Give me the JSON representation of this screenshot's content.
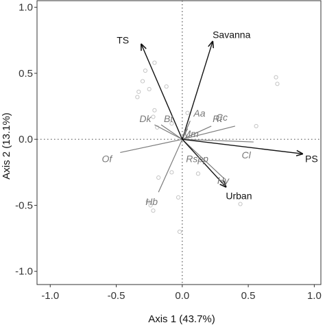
{
  "chart_data": {
    "type": "scatter",
    "subtype": "pca-biplot",
    "xlabel": "Axis 1 (43.7%)",
    "ylabel": "Axis 2 (13.1%)",
    "xlim": [
      -1.1,
      1.05
    ],
    "ylim": [
      -1.1,
      1.05
    ],
    "x_ticks": [
      -1.0,
      -0.5,
      0.0,
      0.5,
      1.0
    ],
    "y_ticks": [
      -1.0,
      -0.5,
      0.0,
      0.5,
      1.0
    ],
    "x_tick_labels": [
      "-1.0",
      "-0.5",
      "0.0",
      "0.5",
      "1.0"
    ],
    "y_tick_labels": [
      "-1.0",
      "-0.5",
      "0.0",
      "0.5",
      "1.0"
    ],
    "reference_lines": {
      "x": 0,
      "y": 0,
      "style": "dotted"
    },
    "grid": false,
    "environment_vectors": [
      {
        "label": "TS",
        "x": -0.31,
        "y": 0.72
      },
      {
        "label": "Savanna",
        "x": 0.23,
        "y": 0.74
      },
      {
        "label": "PS",
        "x": 0.91,
        "y": -0.11
      },
      {
        "label": "Urban",
        "x": 0.33,
        "y": -0.36
      }
    ],
    "species_vectors": [
      {
        "label": "Aa",
        "x": 0.06,
        "y": 0.14
      },
      {
        "label": "Dk",
        "x": -0.21,
        "y": 0.11
      },
      {
        "label": "Bt",
        "x": -0.16,
        "y": 0.11
      },
      {
        "label": "Mm",
        "x": 0.04,
        "y": 0.08
      },
      {
        "label": "Rt",
        "x": 0.22,
        "y": 0.1
      },
      {
        "label": "Cc",
        "x": 0.4,
        "y": 0.1
      },
      {
        "label": "Rspp",
        "x": 0.08,
        "y": -0.08
      },
      {
        "label": "Cl",
        "x": 0.54,
        "y": -0.02
      },
      {
        "label": "Of",
        "x": -0.47,
        "y": -0.1
      },
      {
        "label": "Hy",
        "x": 0.32,
        "y": -0.3
      },
      {
        "label": "Hb",
        "x": -0.18,
        "y": -0.4
      }
    ],
    "sites": [
      {
        "x": -0.21,
        "y": 0.58
      },
      {
        "x": -0.28,
        "y": 0.52
      },
      {
        "x": -0.3,
        "y": 0.44
      },
      {
        "x": -0.25,
        "y": 0.38
      },
      {
        "x": -0.33,
        "y": 0.36
      },
      {
        "x": -0.34,
        "y": 0.32
      },
      {
        "x": -0.12,
        "y": 0.4
      },
      {
        "x": -0.21,
        "y": 0.22
      },
      {
        "x": -0.22,
        "y": 0.17
      },
      {
        "x": -0.08,
        "y": 0.12
      },
      {
        "x": -0.19,
        "y": 0.09
      },
      {
        "x": 0.04,
        "y": 0.2
      },
      {
        "x": 0.56,
        "y": 0.1
      },
      {
        "x": 0.71,
        "y": 0.47
      },
      {
        "x": 0.72,
        "y": 0.42
      },
      {
        "x": -0.08,
        "y": -0.25
      },
      {
        "x": 0.12,
        "y": -0.26
      },
      {
        "x": -0.18,
        "y": -0.29
      },
      {
        "x": -0.26,
        "y": -0.47
      },
      {
        "x": -0.24,
        "y": -0.5
      },
      {
        "x": -0.22,
        "y": -0.54
      },
      {
        "x": -0.03,
        "y": -0.44
      },
      {
        "x": -0.02,
        "y": -0.7
      },
      {
        "x": 0.44,
        "y": -0.49
      }
    ]
  }
}
